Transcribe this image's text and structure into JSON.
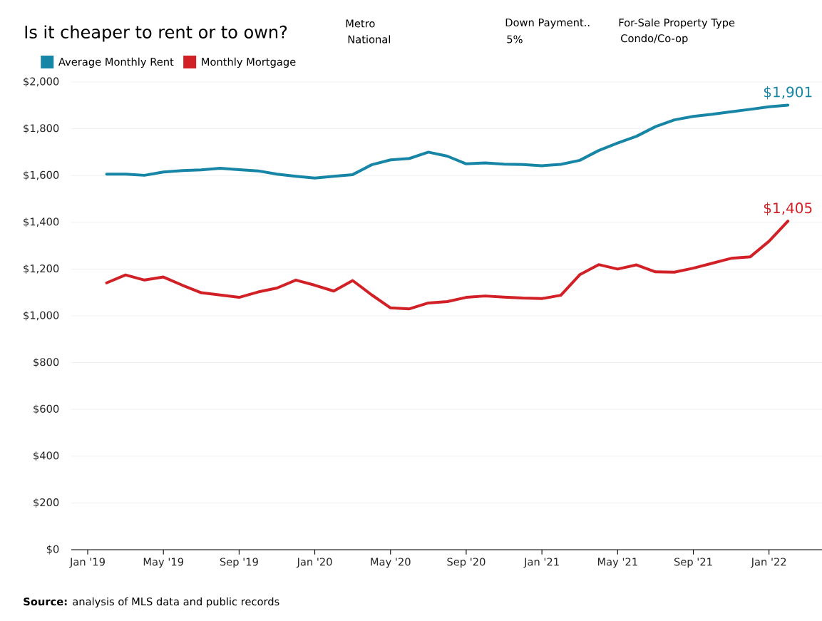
{
  "chart_data": {
    "type": "line",
    "title": "Is it cheaper to rent or to own?",
    "annotations": [
      "Metro",
      "National",
      "Down Payment..",
      "5%",
      "For-Sale Property Type",
      "Condo/Co-op",
      "**Source:** analysis of MLS data and public records"
    ],
    "x": [
      "2019-02",
      "2019-03",
      "2019-04",
      "2019-05",
      "2019-06",
      "2019-07",
      "2019-08",
      "2019-09",
      "2019-10",
      "2019-11",
      "2019-12",
      "2020-01",
      "2020-02",
      "2020-03",
      "2020-04",
      "2020-05",
      "2020-06",
      "2020-07",
      "2020-08",
      "2020-09",
      "2020-10",
      "2020-11",
      "2020-12",
      "2021-01",
      "2021-02",
      "2021-03",
      "2021-04",
      "2021-05",
      "2021-06",
      "2021-07",
      "2021-08",
      "2021-09",
      "2021-10",
      "2021-11",
      "2021-12",
      "2022-01",
      "2022-02"
    ],
    "xlim": [
      "2018-12-05",
      "2022-03-25"
    ],
    "xticks": [
      {
        "value": "2019-01",
        "label": "Jan '19"
      },
      {
        "value": "2019-05",
        "label": "May '19"
      },
      {
        "value": "2019-09",
        "label": "Sep '19"
      },
      {
        "value": "2020-01",
        "label": "Jan '20"
      },
      {
        "value": "2020-05",
        "label": "May '20"
      },
      {
        "value": "2020-09",
        "label": "Sep '20"
      },
      {
        "value": "2021-01",
        "label": "Jan '21"
      },
      {
        "value": "2021-05",
        "label": "May '21"
      },
      {
        "value": "2021-09",
        "label": "Sep '21"
      },
      {
        "value": "2022-01",
        "label": "Jan '22"
      }
    ],
    "ylim": [
      0,
      2000
    ],
    "yticks": [
      {
        "value": 0,
        "label": "$0"
      },
      {
        "value": 200,
        "label": "$200"
      },
      {
        "value": 400,
        "label": "$400"
      },
      {
        "value": 600,
        "label": "$600"
      },
      {
        "value": 800,
        "label": "$800"
      },
      {
        "value": 1000,
        "label": "$1,000"
      },
      {
        "value": 1200,
        "label": "$1,200"
      },
      {
        "value": 1400,
        "label": "$1,400"
      },
      {
        "value": 1600,
        "label": "$1,600"
      },
      {
        "value": 1800,
        "label": "$1,800"
      },
      {
        "value": 2000,
        "label": "$2,000"
      }
    ],
    "grid": "y",
    "legend": "top left",
    "series": [
      {
        "name": "Average Monthly Rent",
        "color": "#1785a6",
        "values": [
          1606,
          1606,
          1601,
          1615,
          1621,
          1624,
          1631,
          1625,
          1620,
          1606,
          1597,
          1589,
          1597,
          1604,
          1646,
          1667,
          1673,
          1700,
          1683,
          1650,
          1654,
          1649,
          1647,
          1642,
          1648,
          1665,
          1707,
          1739,
          1768,
          1809,
          1838,
          1853,
          1862,
          1873,
          1883,
          1894,
          1901
        ],
        "value_labels": [
          null,
          null,
          null,
          null,
          null,
          null,
          null,
          null,
          null,
          null,
          null,
          null,
          null,
          null,
          null,
          null,
          null,
          null,
          null,
          null,
          null,
          null,
          null,
          null,
          null,
          null,
          null,
          null,
          null,
          null,
          null,
          null,
          null,
          null,
          null,
          null,
          "$1,901"
        ]
      },
      {
        "name": "Monthly Mortgage",
        "color": "#d12127",
        "values": [
          1141,
          1175,
          1153,
          1166,
          1131,
          1099,
          1089,
          1079,
          1102,
          1119,
          1153,
          1131,
          1106,
          1151,
          1090,
          1034,
          1030,
          1055,
          1061,
          1079,
          1085,
          1080,
          1076,
          1074,
          1088,
          1176,
          1219,
          1200,
          1218,
          1188,
          1187,
          1204,
          1225,
          1246,
          1252,
          1319,
          1405
        ],
        "value_labels": [
          null,
          null,
          null,
          null,
          null,
          null,
          null,
          null,
          null,
          null,
          null,
          null,
          null,
          null,
          null,
          null,
          null,
          null,
          null,
          null,
          null,
          null,
          null,
          null,
          null,
          null,
          null,
          null,
          null,
          null,
          null,
          null,
          null,
          null,
          null,
          null,
          "$1,405"
        ]
      }
    ]
  }
}
